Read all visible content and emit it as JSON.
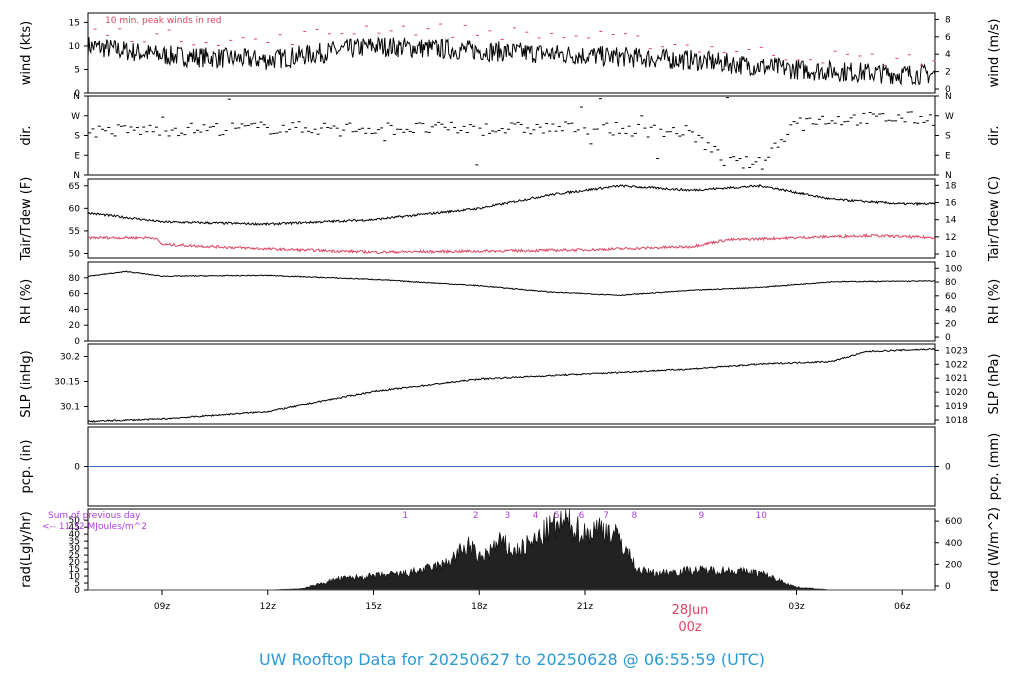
{
  "page_title": "UW Rooftop Data for 20250627  to  20250628 @ 06:55:59  (UTC)",
  "colors": {
    "line": "#000000",
    "accent": "#dc4660",
    "pcp": "#3b6fb3",
    "rad_label": "#b040e0",
    "title": "#2a9ad6"
  },
  "x_axis": {
    "ticks": [
      {
        "hour": 9,
        "label": "09z"
      },
      {
        "hour": 12,
        "label": "12z"
      },
      {
        "hour": 15,
        "label": "15z"
      },
      {
        "hour": 18,
        "label": "18z"
      },
      {
        "hour": 21,
        "label": "21z"
      },
      {
        "hour": 27,
        "label": "03z"
      },
      {
        "hour": 30,
        "label": "06z"
      }
    ],
    "range_hours": [
      6.9,
      30.93
    ],
    "day_marker": {
      "date": "28Jun",
      "time": "00z"
    }
  },
  "chart_data": [
    {
      "id": "wind",
      "type": "line",
      "ylabel": "wind (kts)",
      "ylabel_right": "wind (m/s)",
      "ylim": [
        0,
        17
      ],
      "yticks": [
        0,
        5,
        10,
        15
      ],
      "yticks_right": [
        "0",
        "2",
        "4",
        "6",
        "8"
      ],
      "annotation": "10 min. peak winds in red",
      "series": [
        {
          "role": "wind",
          "x_hours": [
            6.9,
            9,
            12,
            15,
            18,
            21,
            24,
            27,
            30,
            30.93
          ],
          "values": [
            10,
            8,
            7,
            10,
            9,
            8,
            7,
            5,
            4,
            4
          ]
        },
        {
          "role": "peak",
          "x_hours": [
            6.9,
            9,
            12,
            15,
            18,
            21,
            24,
            27,
            30,
            30.93
          ],
          "values": [
            13,
            12,
            11,
            14,
            13,
            12,
            10,
            8,
            7,
            7
          ]
        }
      ]
    },
    {
      "id": "dir",
      "type": "scatter",
      "ylabel": "dir.",
      "ylabel_right": "dir.",
      "yticks_labels": [
        "N",
        "E",
        "S",
        "W",
        "N"
      ],
      "ylim": [
        0,
        360
      ],
      "series": [
        {
          "role": "direction",
          "x_hours": [
            6.9,
            12,
            18,
            21,
            24,
            25,
            26,
            27,
            30,
            30.93
          ],
          "values": [
            200,
            215,
            210,
            215,
            195,
            60,
            50,
            250,
            260,
            255
          ]
        }
      ]
    },
    {
      "id": "temp",
      "type": "line",
      "ylabel": "Tair/Tdew (F)",
      "ylabel_right": "Tair/Tdew (C)",
      "ylim": [
        49,
        66.5
      ],
      "yticks": [
        50,
        55,
        60,
        65
      ],
      "yticks_right": [
        "10",
        "12",
        "14",
        "16",
        "18"
      ],
      "series": [
        {
          "role": "tair",
          "x_hours": [
            6.9,
            9,
            12,
            15,
            18,
            20,
            22,
            24,
            26,
            28,
            30,
            30.93
          ],
          "values": [
            59,
            57,
            56.5,
            57.5,
            60,
            63,
            65,
            64,
            65,
            62,
            61,
            61
          ]
        },
        {
          "role": "tdew",
          "x_hours": [
            6.9,
            8.8,
            9,
            12,
            15,
            18,
            21,
            24,
            25,
            27,
            29,
            30.93
          ],
          "values": [
            53.5,
            53.5,
            52,
            51,
            50.3,
            50.5,
            50.8,
            51.5,
            53,
            53.5,
            54,
            53.5
          ]
        }
      ]
    },
    {
      "id": "rh",
      "type": "line",
      "ylabel": "RH (%)",
      "ylabel_right": "RH (%)",
      "ylim": [
        0,
        100
      ],
      "yticks": [
        0,
        20,
        40,
        60,
        80
      ],
      "yticks_right": [
        "0",
        "20",
        "40",
        "60",
        "80",
        "100"
      ],
      "series": [
        {
          "role": "rh",
          "x_hours": [
            6.9,
            8,
            9,
            12,
            15,
            18,
            20,
            22,
            24,
            26,
            28,
            30.93
          ],
          "values": [
            82,
            88,
            82,
            83,
            78,
            70,
            62,
            58,
            64,
            68,
            75,
            76
          ]
        }
      ]
    },
    {
      "id": "slp",
      "type": "line",
      "ylabel": "SLP (inHg)",
      "ylabel_right": "SLP (hPa)",
      "ylim": [
        30.065,
        30.225
      ],
      "yticks": [
        30.1,
        30.15,
        30.2
      ],
      "yticks_right": [
        "1018",
        "1019",
        "1020",
        "1021",
        "1022",
        "1023"
      ],
      "series": [
        {
          "role": "slp",
          "x_hours": [
            6.9,
            9,
            12,
            15,
            18,
            21,
            24,
            26,
            28,
            29,
            30.93
          ],
          "values": [
            30.07,
            30.075,
            30.09,
            30.13,
            30.155,
            30.165,
            30.175,
            30.185,
            30.19,
            30.21,
            30.215
          ]
        }
      ]
    },
    {
      "id": "pcp",
      "type": "line",
      "ylabel": "pcp. (in)",
      "ylabel_right": "pcp. (mm)",
      "ylim": [
        -1,
        1
      ],
      "yticks": [
        0
      ],
      "yticks_right": [
        "0"
      ],
      "series": [
        {
          "role": "pcp",
          "x_hours": [
            6.9,
            30.93
          ],
          "values": [
            0,
            0
          ]
        }
      ]
    },
    {
      "id": "rad",
      "type": "area",
      "ylabel": "rad(Lgly/hr)",
      "ylabel_right": "rad (W/m^2)",
      "ylim": [
        0,
        58
      ],
      "yticks": [
        0,
        5,
        10,
        15,
        20,
        25,
        30,
        35,
        40,
        45,
        50
      ],
      "yticks_right": [
        "0",
        "200",
        "400",
        "600"
      ],
      "note_line1": "Sum of previous day",
      "note_line2": "<-- 11.32 MJoules/m^2",
      "marker_labels": [
        "1",
        "2",
        "3",
        "4",
        "5",
        "6",
        "7",
        "8",
        "9",
        "10"
      ],
      "marker_hours": [
        15.9,
        17.9,
        18.8,
        19.6,
        20.2,
        20.9,
        21.6,
        22.4,
        24.3,
        26.0
      ],
      "series": [
        {
          "role": "radiation",
          "x_hours": [
            6.9,
            12,
            13,
            14,
            15,
            16,
            17,
            17.7,
            18,
            18.6,
            19,
            19.6,
            20,
            20.5,
            21,
            21.5,
            22,
            22.5,
            23,
            24,
            25,
            26,
            27,
            28,
            30.93
          ],
          "values": [
            0,
            0,
            1,
            8,
            10,
            12,
            18,
            32,
            22,
            34,
            27,
            35,
            44,
            48,
            40,
            45,
            36,
            14,
            12,
            14,
            14,
            12,
            2,
            0,
            0
          ]
        }
      ]
    }
  ]
}
